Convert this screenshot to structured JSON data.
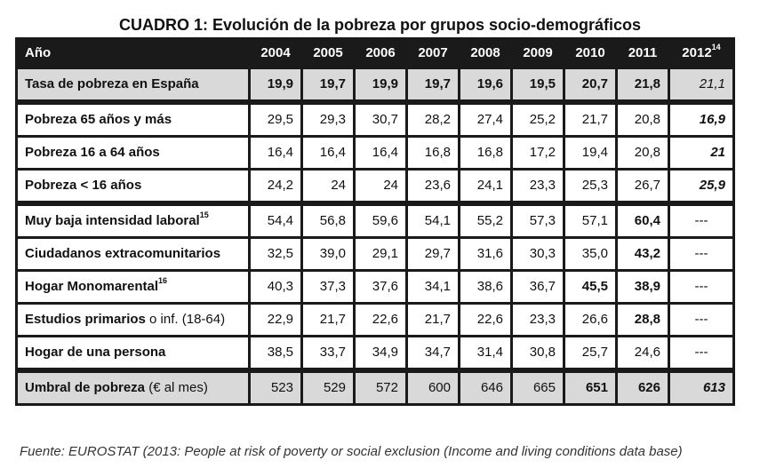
{
  "title": "CUADRO 1: Evolución de la pobreza por grupos socio-demográficos",
  "header": {
    "label": "Año",
    "years": [
      "2004",
      "2005",
      "2006",
      "2007",
      "2008",
      "2009",
      "2010",
      "2011",
      "2012"
    ],
    "year_2012_note": "14"
  },
  "rows": [
    {
      "label": "Tasa de pobreza en España",
      "values": [
        "19,9",
        "19,7",
        "19,9",
        "19,7",
        "19,6",
        "19,5",
        "20,7",
        "21,8",
        "21,1"
      ]
    },
    {
      "label": "Pobreza 65 años y más",
      "values": [
        "29,5",
        "29,3",
        "30,7",
        "28,2",
        "27,4",
        "25,2",
        "21,7",
        "20,8",
        "16,9"
      ]
    },
    {
      "label": "Pobreza 16 a 64 años",
      "values": [
        "16,4",
        "16,4",
        "16,4",
        "16,8",
        "16,8",
        "17,2",
        "19,4",
        "20,8",
        "21"
      ]
    },
    {
      "label": "Pobreza < 16 años",
      "values": [
        "24,2",
        "24",
        "24",
        "23,6",
        "24,1",
        "23,3",
        "25,3",
        "26,7",
        "25,9"
      ]
    },
    {
      "label": "Muy baja intensidad laboral",
      "note": "15",
      "values": [
        "54,4",
        "56,8",
        "59,6",
        "54,1",
        "55,2",
        "57,3",
        "57,1",
        "60,4",
        "---"
      ]
    },
    {
      "label": "Ciudadanos extracomunitarios",
      "values": [
        "32,5",
        "39,0",
        "29,1",
        "29,7",
        "31,6",
        "30,3",
        "35,0",
        "43,2",
        "---"
      ]
    },
    {
      "label": "Hogar Monomarental",
      "note": "16",
      "values": [
        "40,3",
        "37,3",
        "37,6",
        "34,1",
        "38,6",
        "36,7",
        "45,5",
        "38,9",
        "---"
      ]
    },
    {
      "label": "Estudios primarios",
      "label_suffix": "o inf. (18-64)",
      "values": [
        "22,9",
        "21,7",
        "22,6",
        "21,7",
        "22,6",
        "23,3",
        "26,6",
        "28,8",
        "---"
      ]
    },
    {
      "label": "Hogar de una persona",
      "values": [
        "38,5",
        "33,7",
        "34,9",
        "34,7",
        "31,4",
        "30,8",
        "25,7",
        "24,6",
        "---"
      ]
    },
    {
      "label": "Umbral de pobreza",
      "label_suffix": "(€ al mes)",
      "values": [
        "523",
        "529",
        "572",
        "600",
        "646",
        "665",
        "651",
        "626",
        "613"
      ]
    }
  ],
  "source": "Fuente: EUROSTAT (2013: People at risk of poverty or social exclusion (Income and living conditions data base)"
}
